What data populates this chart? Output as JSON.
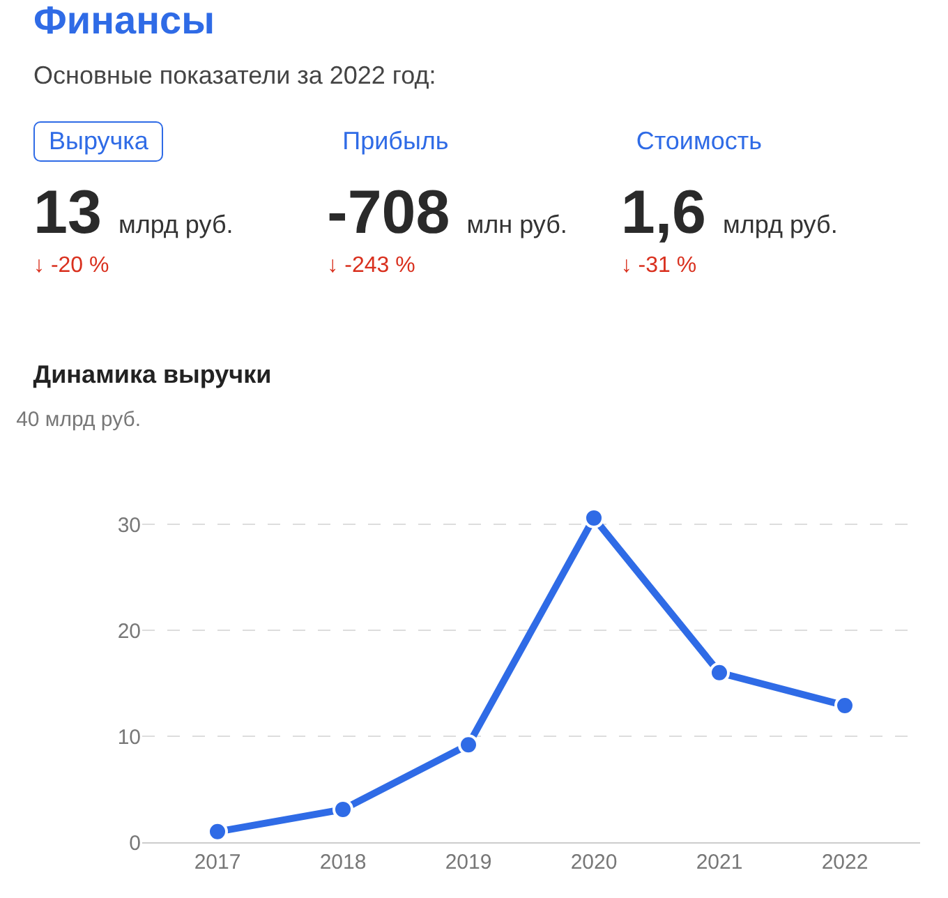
{
  "chart_data": [
    {
      "type": "other",
      "title": "Финансы",
      "subtitle": "Основные показатели за 2022 год:",
      "annotations": [
        "Выручка",
        "13",
        "млрд руб.",
        "↓ -20 %",
        "Прибыль",
        "-708",
        "млн руб.",
        "↓ -243 %",
        "Стоимость",
        "1,6",
        "млрд руб.",
        "↓ -31 %"
      ]
    },
    {
      "type": "line",
      "title": "Динамика выручки",
      "categories": [
        "2017",
        "2018",
        "2019",
        "2020",
        "2021",
        "2022"
      ],
      "series": [
        {
          "color": "#2f6be6",
          "values": [
            1.0,
            3.1,
            9.2,
            30.6,
            16.0,
            12.9
          ]
        }
      ],
      "ylim": [
        0,
        40
      ],
      "yticks": [
        0,
        10,
        20,
        30,
        {
          "value": 40,
          "label": "40 млрд руб."
        }
      ],
      "grid": "y",
      "marker": "circle",
      "line_style": "solid"
    }
  ]
}
